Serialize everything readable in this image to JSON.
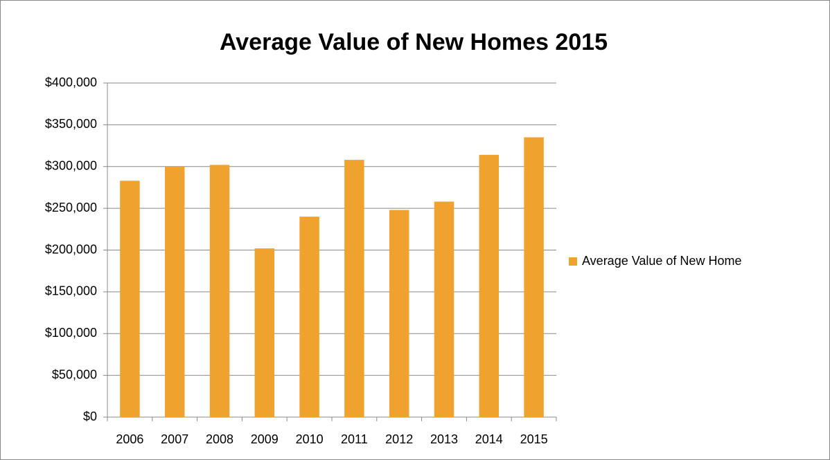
{
  "chart_data": {
    "type": "bar",
    "title": "Average Value of New Homes 2015",
    "categories": [
      "2006",
      "2007",
      "2008",
      "2009",
      "2010",
      "2011",
      "2012",
      "2013",
      "2014",
      "2015"
    ],
    "series": [
      {
        "name": "Average Value of New Home",
        "color": "#f0a22e",
        "values": [
          283000,
          300000,
          302000,
          202000,
          240000,
          308000,
          248000,
          258000,
          314000,
          335000
        ]
      }
    ],
    "ylim": [
      0,
      400000
    ],
    "yticks": [
      {
        "value": 0,
        "label": "$0"
      },
      {
        "value": 50000,
        "label": "$50,000"
      },
      {
        "value": 100000,
        "label": "$100,000"
      },
      {
        "value": 150000,
        "label": "$150,000"
      },
      {
        "value": 200000,
        "label": "$200,000"
      },
      {
        "value": 250000,
        "label": "$250,000"
      },
      {
        "value": 300000,
        "label": "$300,000"
      },
      {
        "value": 350000,
        "label": "$350,000"
      },
      {
        "value": 400000,
        "label": "$400,000"
      }
    ],
    "grid": true,
    "legend": "right"
  }
}
